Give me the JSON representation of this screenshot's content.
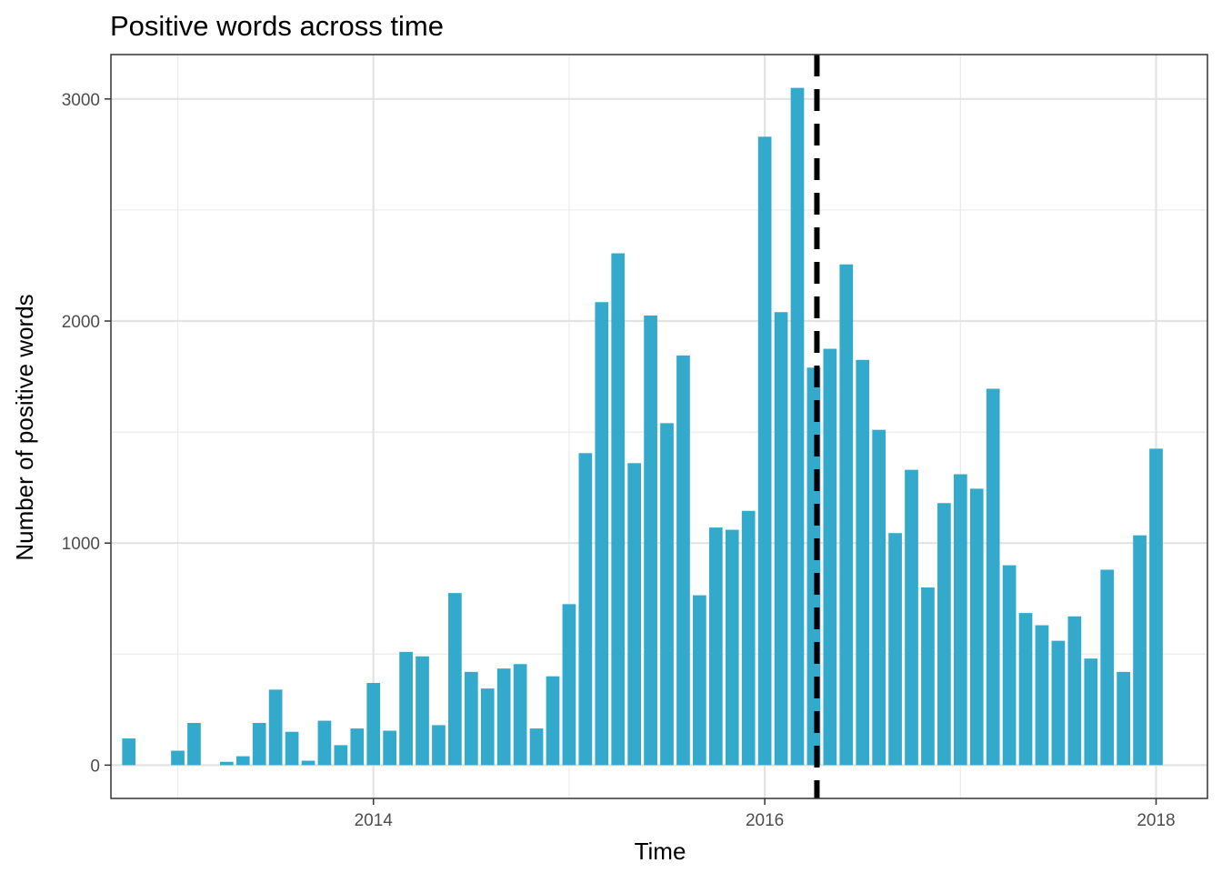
{
  "chart_data": {
    "type": "bar",
    "title": "Positive words across time",
    "xlabel": "Time",
    "ylabel": "Number of positive words",
    "x_ticks": [
      "2014",
      "2016",
      "2018"
    ],
    "y_ticks": [
      "0",
      "1000",
      "2000",
      "3000"
    ],
    "ylim": [
      -150,
      3200
    ],
    "xlim": [
      "2012-09",
      "2018-04"
    ],
    "grid": true,
    "bar_color": "#33AACC",
    "vline": {
      "date": "2016-04-07",
      "style": "dashed",
      "color": "#000000"
    },
    "series": [
      {
        "x": [
          "2012-10",
          "2012-11",
          "2012-12",
          "2013-01",
          "2013-02",
          "2013-03",
          "2013-04",
          "2013-05",
          "2013-06",
          "2013-07",
          "2013-08",
          "2013-09",
          "2013-10",
          "2013-11",
          "2013-12",
          "2014-01",
          "2014-02",
          "2014-03",
          "2014-04",
          "2014-05",
          "2014-06",
          "2014-07",
          "2014-08",
          "2014-09",
          "2014-10",
          "2014-11",
          "2014-12",
          "2015-01",
          "2015-02",
          "2015-03",
          "2015-04",
          "2015-05",
          "2015-06",
          "2015-07",
          "2015-08",
          "2015-09",
          "2015-10",
          "2015-11",
          "2015-12",
          "2016-01",
          "2016-02",
          "2016-03",
          "2016-04",
          "2016-05",
          "2016-06",
          "2016-07",
          "2016-08",
          "2016-09",
          "2016-10",
          "2016-11",
          "2016-12",
          "2017-01",
          "2017-02",
          "2017-03",
          "2017-04",
          "2017-05",
          "2017-06",
          "2017-07",
          "2017-08",
          "2017-09",
          "2017-10",
          "2017-11",
          "2017-12",
          "2018-01"
        ],
        "values": [
          120,
          0,
          0,
          65,
          190,
          0,
          15,
          40,
          190,
          340,
          150,
          20,
          200,
          90,
          165,
          370,
          155,
          510,
          490,
          180,
          775,
          420,
          345,
          435,
          455,
          165,
          400,
          725,
          1405,
          2085,
          2305,
          1360,
          2025,
          1540,
          1845,
          765,
          1070,
          1060,
          1145,
          2830,
          2040,
          3050,
          1790,
          1875,
          2255,
          1825,
          1510,
          1045,
          1330,
          800,
          1180,
          1310,
          1245,
          1695,
          900,
          685,
          630,
          560,
          670,
          480,
          880,
          420,
          1035,
          1425
        ]
      }
    ]
  }
}
